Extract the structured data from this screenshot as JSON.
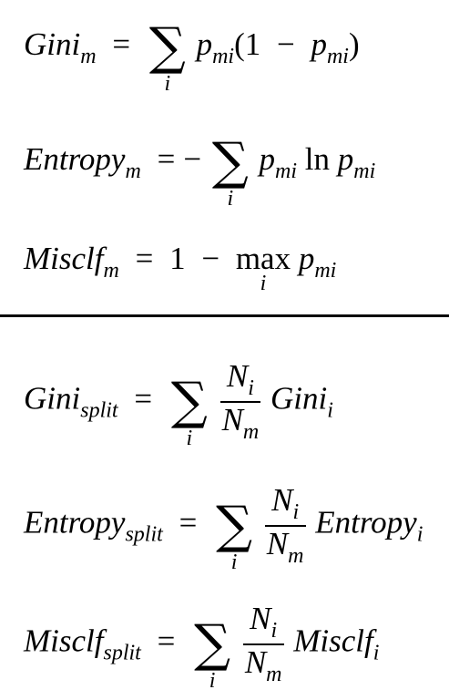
{
  "colors": {
    "text": "#000000",
    "background": "#ffffff"
  },
  "common": {
    "equals": "=",
    "sum": "∑",
    "index": "i",
    "p": "p",
    "sub_mi": "mi",
    "sub_m": "m",
    "sub_i": "i",
    "N": "N"
  },
  "gini_m": {
    "name": "Gini",
    "sub": "m",
    "lparen_one": "(1",
    "minus": "−",
    "rparen": ")"
  },
  "entropy_m": {
    "name": "Entropy",
    "sub": "m",
    "minus": "−",
    "ln": "ln"
  },
  "misclf_m": {
    "name": "Misclf",
    "sub": "m",
    "one": "1",
    "minus": "−",
    "max": "max"
  },
  "gini_split": {
    "name": "Gini",
    "sub": "split",
    "term": "Gini",
    "term_sub": "i"
  },
  "entropy_split": {
    "name": "Entropy",
    "sub": "split",
    "term": "Entropy",
    "term_sub": "i"
  },
  "misclf_split": {
    "name": "Misclf",
    "sub": "split",
    "term": "Misclf",
    "term_sub": "i"
  }
}
